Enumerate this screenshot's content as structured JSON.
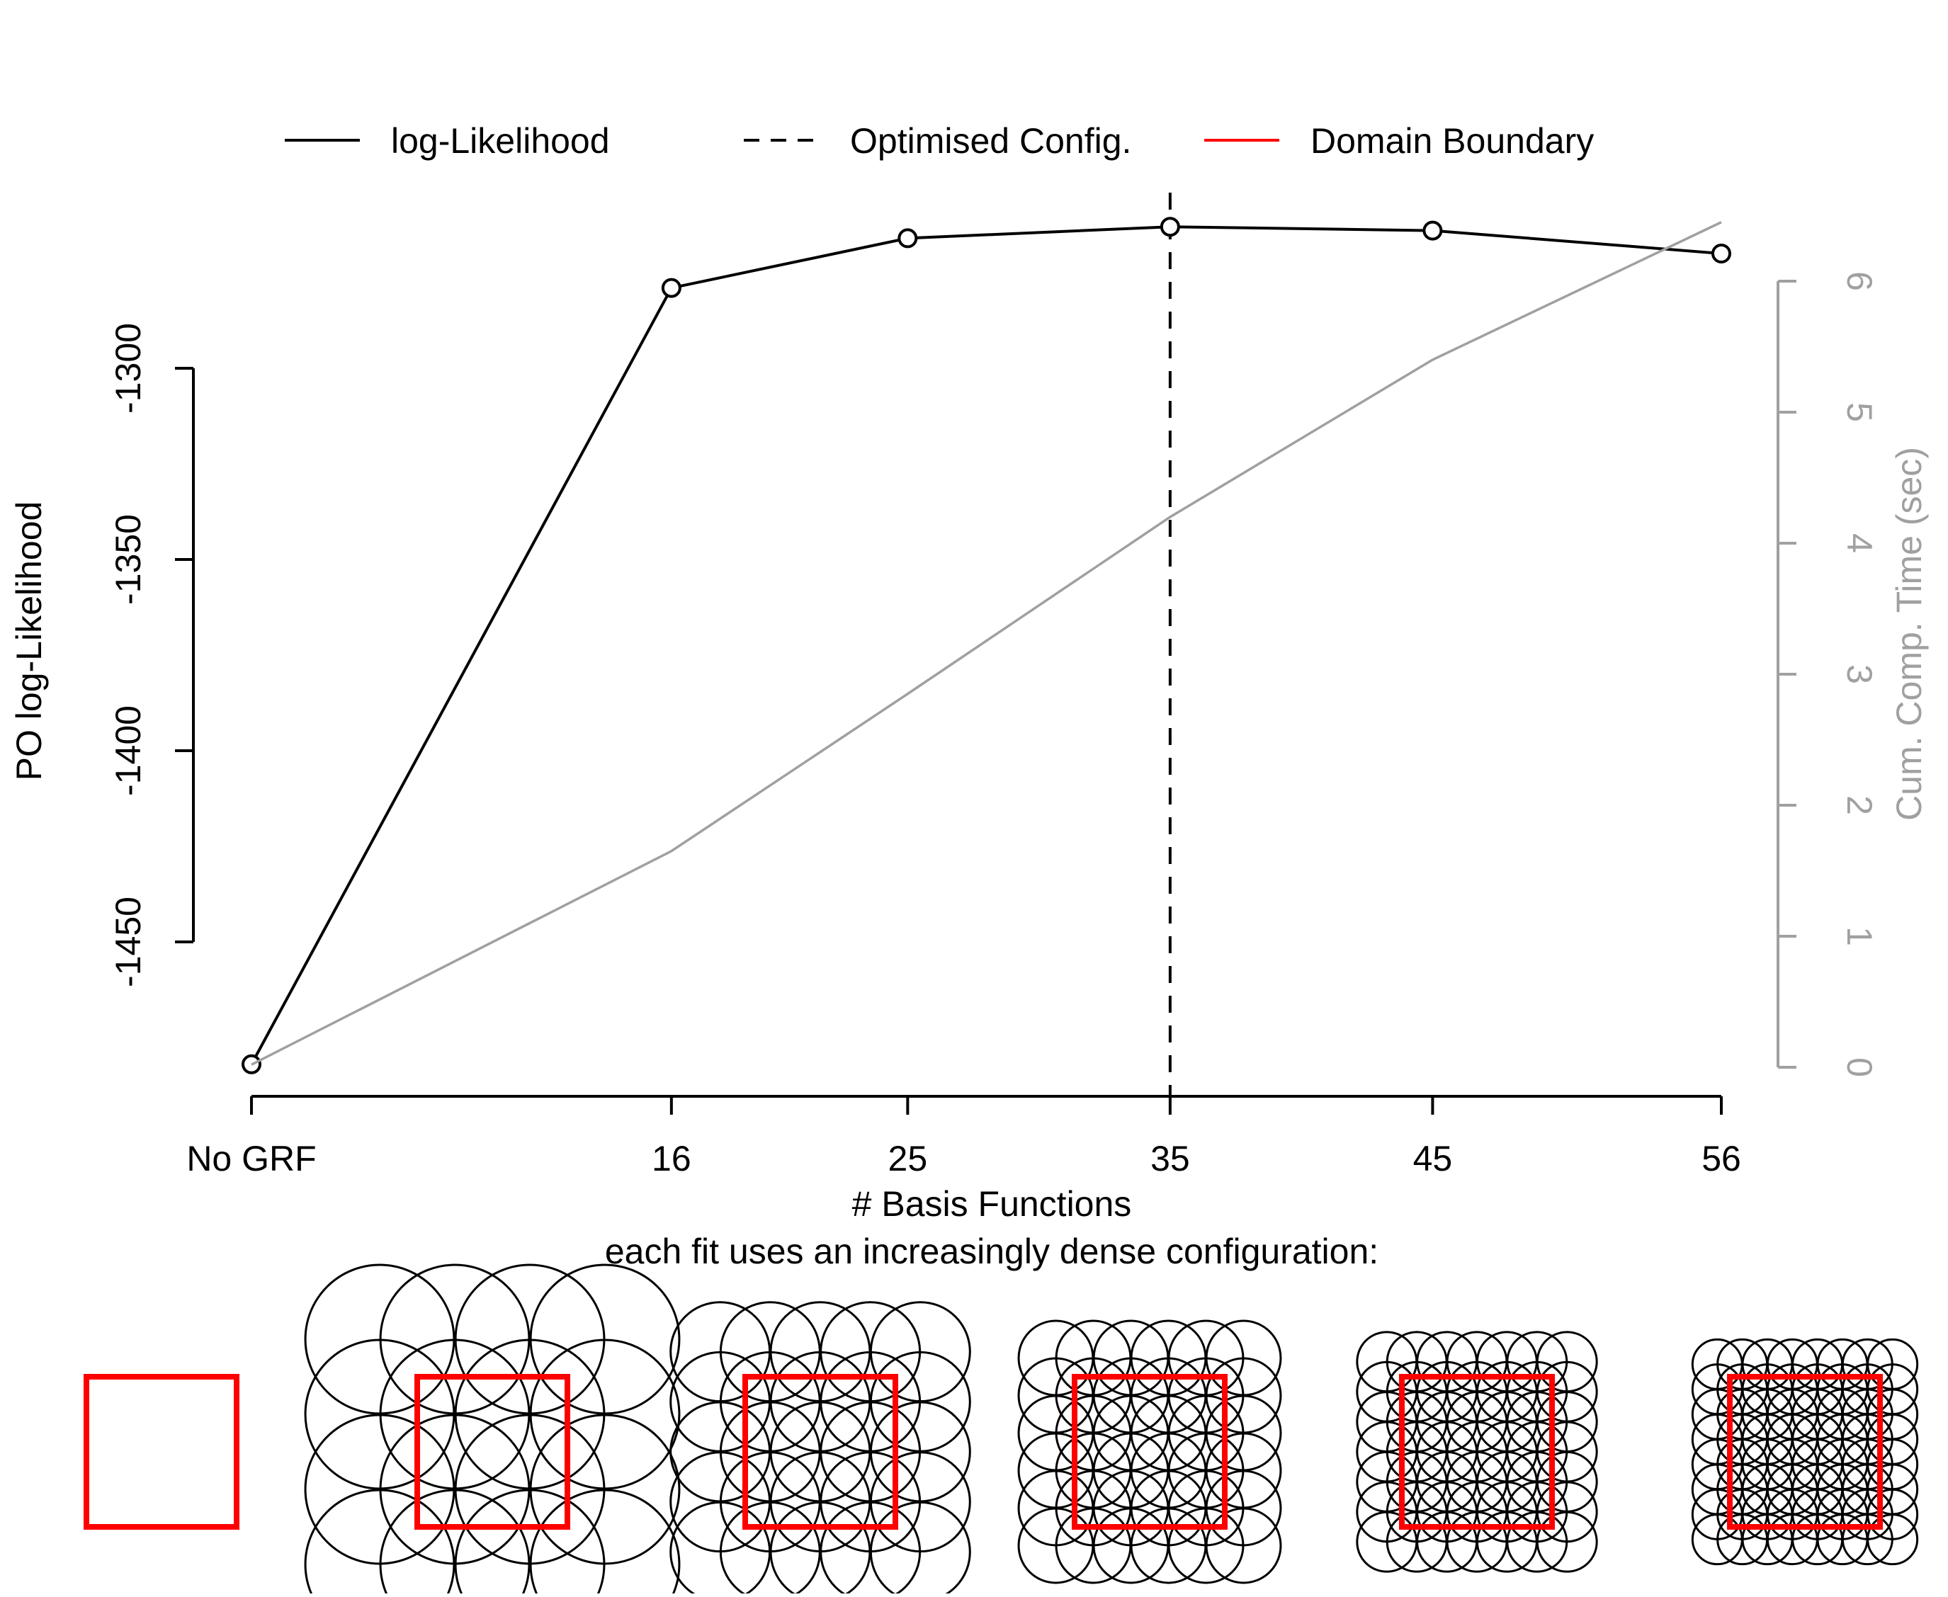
{
  "chart_data": {
    "type": "line",
    "categories": [
      "No GRF",
      "16",
      "25",
      "35",
      "45",
      "56"
    ],
    "x": [
      0,
      16,
      25,
      35,
      45,
      56
    ],
    "xlabel": "# Basis Functions",
    "subtitle": "each fit uses an increasingly dense configuration:",
    "ylabel_left": "PO log-Likelihood",
    "ylabel_right": "Cum. Comp. Time (sec)",
    "y_left_ticks": [
      -1300,
      -1350,
      -1400,
      -1450
    ],
    "y_left_tick_labels": [
      "-1300",
      "-1350",
      "-1400",
      "-1450"
    ],
    "y_right_ticks": [
      0,
      1,
      2,
      3,
      4,
      5,
      6
    ],
    "y_right_tick_labels": [
      "0",
      "1",
      "2",
      "3",
      "4",
      "5",
      "6"
    ],
    "ylim_left": [
      -1485,
      -1255
    ],
    "ylim_right": [
      0,
      6
    ],
    "series": [
      {
        "name": "log-Likelihood",
        "axis": "left",
        "values": [
          -1482,
          -1279,
          -1266,
          -1263,
          -1264,
          -1270
        ],
        "color": "#000000",
        "markers": true
      },
      {
        "axis": "right",
        "values": [
          0.02,
          1.65,
          2.85,
          4.2,
          5.4,
          6.45
        ],
        "color": "#a0a0a0"
      }
    ],
    "vline": {
      "name": "Optimised Config.",
      "x": 35,
      "color": "#000000",
      "dash": true
    },
    "legend": {
      "position": "top",
      "entries": [
        {
          "label": "log-Likelihood",
          "style": "solid",
          "color": "#000000"
        },
        {
          "label": "Optimised Config.",
          "style": "dashed",
          "color": "#000000"
        },
        {
          "label": "Domain Boundary",
          "style": "solid",
          "color": "#ff0000"
        }
      ]
    },
    "configurations": [
      {
        "label": "No GRF",
        "grid": 0
      },
      {
        "label": "16",
        "grid": 4
      },
      {
        "label": "25",
        "grid": 5
      },
      {
        "label": "35",
        "grid": 6
      },
      {
        "label": "45",
        "grid": 7
      },
      {
        "label": "56",
        "grid": 8
      }
    ],
    "domain_color": "#ff0000",
    "grid": false
  }
}
